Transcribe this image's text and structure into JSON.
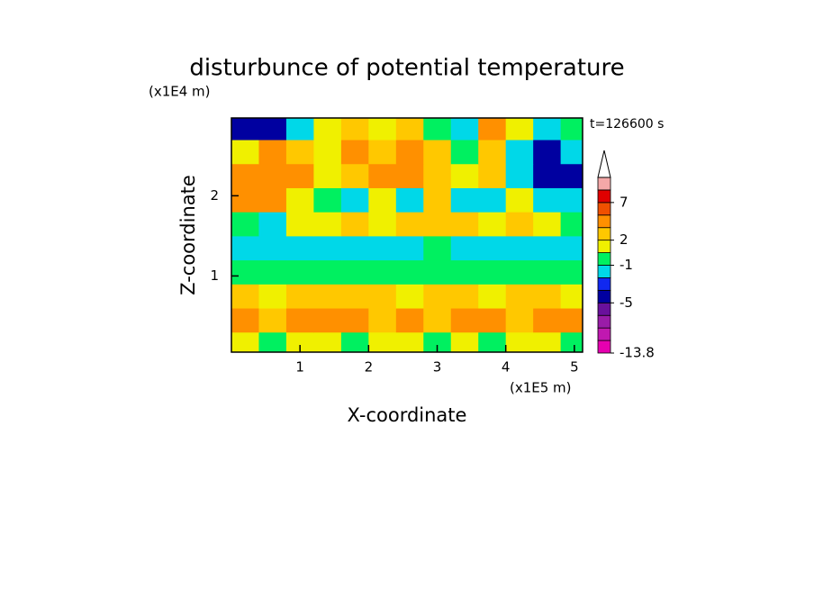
{
  "chart_data": {
    "type": "contour",
    "title": "disturbunce of potential temperature",
    "x_label": "X-coordinate",
    "y_label": "Z-coordinate",
    "x_unit": "(x1E5 m)",
    "y_unit": "(x1E4 m)",
    "annotation": "t=126600 s",
    "xlim": [
      0,
      5.12
    ],
    "ylim": [
      0.05,
      2.97
    ],
    "xticks": [
      1,
      2,
      3,
      4,
      5
    ],
    "yticks": [
      1,
      2
    ],
    "x": [
      0.2,
      0.6,
      1.0,
      1.4,
      1.8,
      2.2,
      2.6,
      3.0,
      3.4,
      3.8,
      4.2,
      4.6,
      5.0
    ],
    "z": [
      0.15,
      0.45,
      0.75,
      1.05,
      1.35,
      1.65,
      1.95,
      2.25,
      2.55,
      2.85
    ],
    "values": [
      [
        1,
        0,
        1,
        1,
        0,
        1,
        1,
        0,
        1,
        0,
        1,
        1,
        0
      ],
      [
        3,
        2.5,
        3,
        3,
        3,
        2.5,
        3,
        2,
        3,
        3,
        2.5,
        3,
        3
      ],
      [
        2,
        1.5,
        2,
        2,
        2,
        2,
        1.5,
        2,
        2,
        1.5,
        2,
        2,
        1.5
      ],
      [
        0,
        0,
        0,
        0,
        0,
        0,
        0,
        0,
        0,
        0,
        0,
        0,
        0
      ],
      [
        -1.5,
        -1.5,
        -1.5,
        -1.5,
        -1.5,
        -1.5,
        -1.5,
        0,
        -1.5,
        -1.5,
        -1.5,
        -1.5,
        -1.5
      ],
      [
        0,
        -1.5,
        1.5,
        1.5,
        2,
        1.5,
        2.5,
        2.5,
        2,
        1.5,
        2,
        1.5,
        0
      ],
      [
        4,
        3,
        1.5,
        0,
        -1.5,
        1.5,
        -1.5,
        2,
        -1.5,
        -1.5,
        1.5,
        -1.5,
        -1.5
      ],
      [
        4,
        4,
        3,
        1.5,
        2.5,
        3,
        4,
        2,
        1.5,
        2.5,
        -1.5,
        -4,
        -4
      ],
      [
        1.5,
        3,
        2.5,
        1.5,
        3,
        2.5,
        4,
        2.5,
        0,
        2.5,
        -1.5,
        -4,
        -1.5
      ],
      [
        -4,
        -4,
        -1.5,
        1.5,
        2.5,
        1.5,
        2.5,
        0,
        -1.5,
        4,
        1.5,
        -1.5,
        0
      ]
    ],
    "levels": [
      -13.8,
      -11,
      -9,
      -7,
      -5,
      -3,
      -2,
      -1,
      1,
      2,
      3,
      5,
      7,
      9,
      11
    ],
    "colors": [
      "#e600b0",
      "#c018b0",
      "#9a1ca8",
      "#6a109c",
      "#0000a0",
      "#1028f0",
      "#00d8e8",
      "#00f060",
      "#f0f000",
      "#ffc800",
      "#ff9000",
      "#f05000",
      "#e00000",
      "#f4a8a8"
    ],
    "colorbar_ticks": [
      7,
      2,
      -1,
      -5,
      -13.8
    ]
  }
}
